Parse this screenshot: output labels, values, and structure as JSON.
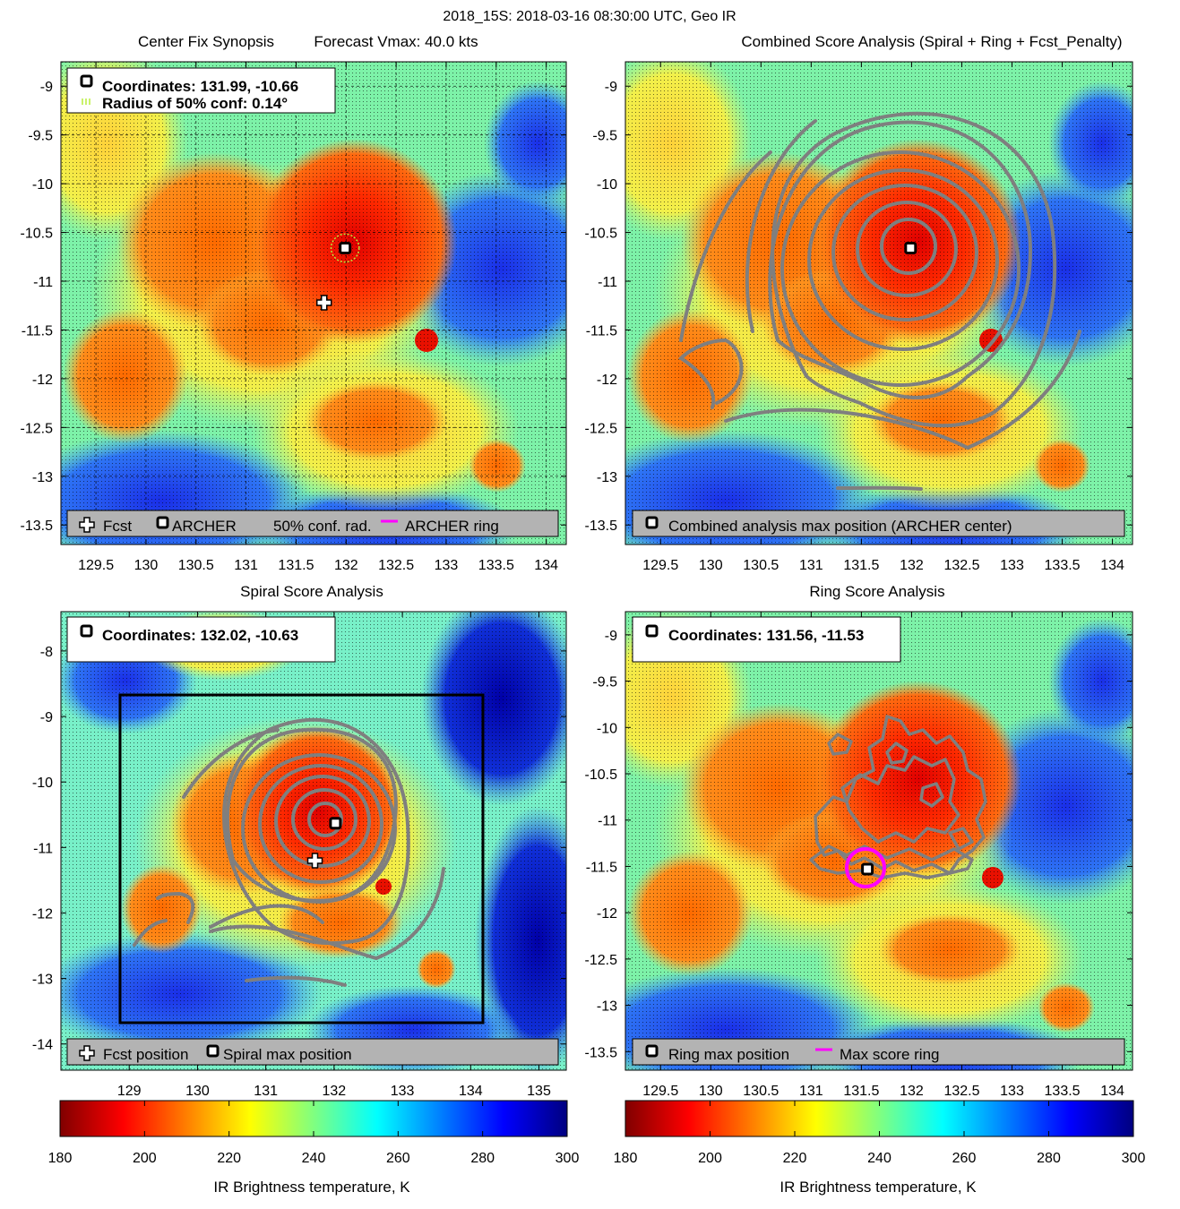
{
  "figure": {
    "suptitle": "2018_15S: 2018-03-16 08:30:00 UTC, Geo IR"
  },
  "colors": {
    "legend_bg": "#b3b3b3",
    "contour": "#7f7f7f",
    "magenta": "#ff00ff",
    "fix_green": "#b8ee3c",
    "box": "#000000"
  },
  "chart_data": [
    {
      "id": "synopsis",
      "type": "heatmap",
      "title_left": "Center Fix Synopsis",
      "title_right": "Forecast Vmax: 40.0 kts",
      "xlim": [
        129.15,
        134.2
      ],
      "ylim": [
        -13.7,
        -8.75
      ],
      "xticks": [
        "129.5",
        "130",
        "130.5",
        "131",
        "131.5",
        "132",
        "132.5",
        "133",
        "133.5",
        "134"
      ],
      "yticks": [
        "-9",
        "-9.5",
        "-10",
        "-10.5",
        "-11",
        "-11.5",
        "-12",
        "-12.5",
        "-13",
        "-13.5"
      ],
      "markers": {
        "archer": [
          131.99,
          -10.66
        ],
        "fcst": [
          131.78,
          -11.22
        ],
        "conf_radius_deg": 0.14
      },
      "info": {
        "line1": "Coordinates: 131.99, -10.66",
        "line2": "Radius of 50% conf: 0.14°"
      },
      "legend": {
        "fcst": "Fcst",
        "archer": "ARCHER",
        "conf": "50% conf. rad.",
        "ring": "ARCHER ring"
      }
    },
    {
      "id": "combined",
      "type": "heatmap",
      "title": "Combined Score Analysis (Spiral + Ring + Fcst_Penalty)",
      "xlim": [
        129.15,
        134.2
      ],
      "ylim": [
        -13.7,
        -8.75
      ],
      "xticks": [
        "129.5",
        "130",
        "130.5",
        "131",
        "131.5",
        "132",
        "132.5",
        "133",
        "133.5",
        "134"
      ],
      "yticks": [
        "-9",
        "-9.5",
        "-10",
        "-10.5",
        "-11",
        "-11.5",
        "-12",
        "-12.5",
        "-13",
        "-13.5"
      ],
      "markers": {
        "max": [
          131.99,
          -10.66
        ]
      },
      "legend": {
        "max": "Combined analysis max position (ARCHER center)"
      }
    },
    {
      "id": "spiral",
      "type": "heatmap",
      "title": "Spiral Score Analysis",
      "xlim": [
        128.0,
        135.4
      ],
      "ylim": [
        -14.4,
        -7.4
      ],
      "xticks": [
        "129",
        "130",
        "131",
        "132",
        "133",
        "134",
        "135"
      ],
      "yticks": [
        "-8",
        "-9",
        "-10",
        "-11",
        "-12",
        "-13",
        "-14"
      ],
      "markers": {
        "max": [
          132.02,
          -10.63
        ],
        "fcst": [
          131.72,
          -11.2
        ]
      },
      "search_box": {
        "x": [
          128.85,
          134.2
        ],
        "y": [
          -13.7,
          -8.7
        ]
      },
      "info": {
        "line1": "Coordinates: 132.02, -10.63"
      },
      "legend": {
        "fcst": "Fcst position",
        "max": "Spiral max position"
      }
    },
    {
      "id": "ring",
      "type": "heatmap",
      "title": "Ring Score Analysis",
      "xlim": [
        129.15,
        134.2
      ],
      "ylim": [
        -13.7,
        -8.75
      ],
      "xticks": [
        "129.5",
        "130",
        "130.5",
        "131",
        "131.5",
        "132",
        "132.5",
        "133",
        "133.5",
        "134"
      ],
      "yticks": [
        "-9",
        "-9.5",
        "-10",
        "-10.5",
        "-11",
        "-11.5",
        "-12",
        "-12.5",
        "-13",
        "-13.5"
      ],
      "markers": {
        "max": [
          131.56,
          -11.53
        ]
      },
      "info": {
        "line1": "Coordinates: 131.56, -11.53"
      },
      "legend": {
        "max": "Ring max position",
        "ring": "Max score ring"
      }
    }
  ],
  "colorbars": [
    {
      "id": "cb-left",
      "label": "IR Brightness temperature, K",
      "range": [
        180,
        300
      ],
      "ticks": [
        "180",
        "200",
        "220",
        "240",
        "260",
        "280",
        "300"
      ]
    },
    {
      "id": "cb-right",
      "label": "IR Brightness temperature, K",
      "range": [
        180,
        300
      ],
      "ticks": [
        "180",
        "200",
        "220",
        "240",
        "260",
        "280",
        "300"
      ]
    }
  ]
}
